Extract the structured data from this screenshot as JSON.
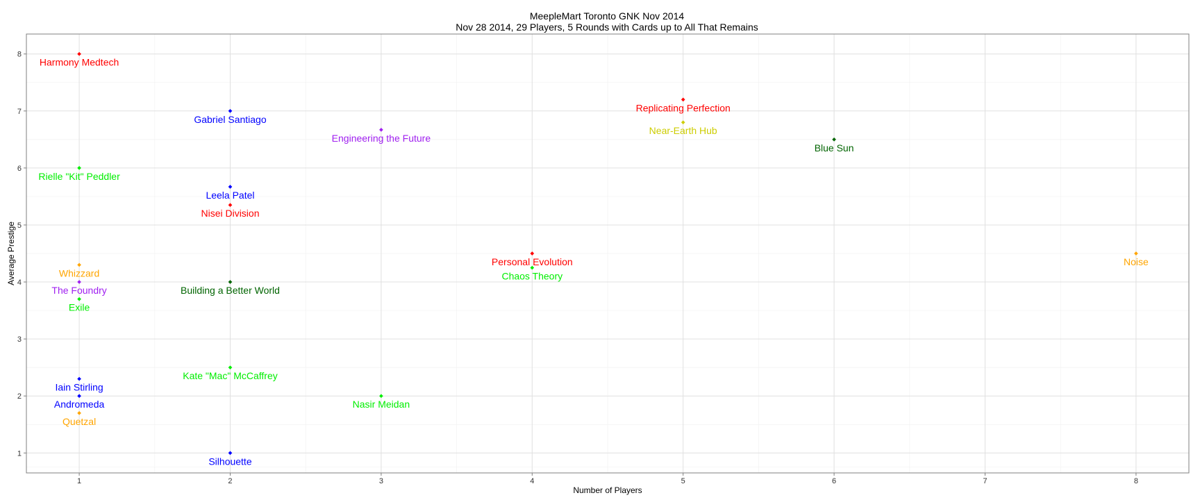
{
  "chart_data": {
    "type": "scatter",
    "title": "MeepleMart Toronto GNK Nov 2014",
    "subtitle": "Nov 28 2014, 29 Players, 5 Rounds with Cards up to All That Remains",
    "xlabel": "Number of Players",
    "ylabel": "Average Prestige",
    "xlim": [
      0.65,
      8.35
    ],
    "ylim": [
      0.65,
      8.35
    ],
    "xticks": [
      "1",
      "2",
      "3",
      "4",
      "5",
      "6",
      "7",
      "8"
    ],
    "yticks": [
      "1",
      "2",
      "3",
      "4",
      "5",
      "6",
      "7",
      "8"
    ],
    "grid": true,
    "legend": "none",
    "colors": {
      "red": "#ff0000",
      "blue": "#0000ff",
      "green": "#00ee00",
      "darkgreen": "#006400",
      "purple": "#a020f0",
      "orange": "#ffa500",
      "gold": "#cdcd00"
    },
    "points": [
      {
        "label": "Harmony Medtech",
        "x": 1,
        "y": 8.0,
        "color": "red"
      },
      {
        "label": "Rielle \"Kit\" Peddler",
        "x": 1,
        "y": 6.0,
        "color": "green"
      },
      {
        "label": "Whizzard",
        "x": 1,
        "y": 4.3,
        "color": "orange"
      },
      {
        "label": "The Foundry",
        "x": 1,
        "y": 4.0,
        "color": "purple"
      },
      {
        "label": "Exile",
        "x": 1,
        "y": 3.7,
        "color": "green"
      },
      {
        "label": "Iain Stirling",
        "x": 1,
        "y": 2.3,
        "color": "blue"
      },
      {
        "label": "Andromeda",
        "x": 1,
        "y": 2.0,
        "color": "blue"
      },
      {
        "label": "Quetzal",
        "x": 1,
        "y": 1.7,
        "color": "orange"
      },
      {
        "label": "Gabriel Santiago",
        "x": 2,
        "y": 7.0,
        "color": "blue"
      },
      {
        "label": "Leela Patel",
        "x": 2,
        "y": 5.67,
        "color": "blue"
      },
      {
        "label": "Nisei Division",
        "x": 2,
        "y": 5.35,
        "color": "red"
      },
      {
        "label": "Building a Better World",
        "x": 2,
        "y": 4.0,
        "color": "darkgreen"
      },
      {
        "label": "Kate \"Mac\" McCaffrey",
        "x": 2,
        "y": 2.5,
        "color": "green"
      },
      {
        "label": "Silhouette",
        "x": 2,
        "y": 1.0,
        "color": "blue"
      },
      {
        "label": "Engineering the Future",
        "x": 3,
        "y": 6.67,
        "color": "purple"
      },
      {
        "label": "Nasir Meidan",
        "x": 3,
        "y": 2.0,
        "color": "green"
      },
      {
        "label": "Personal Evolution",
        "x": 4,
        "y": 4.5,
        "color": "red"
      },
      {
        "label": "Chaos Theory",
        "x": 4,
        "y": 4.25,
        "color": "green"
      },
      {
        "label": "Replicating Perfection",
        "x": 5,
        "y": 7.2,
        "color": "red"
      },
      {
        "label": "Near-Earth Hub",
        "x": 5,
        "y": 6.8,
        "color": "gold"
      },
      {
        "label": "Blue Sun",
        "x": 6,
        "y": 6.5,
        "color": "darkgreen"
      },
      {
        "label": "Noise",
        "x": 8,
        "y": 4.5,
        "color": "orange"
      }
    ]
  }
}
